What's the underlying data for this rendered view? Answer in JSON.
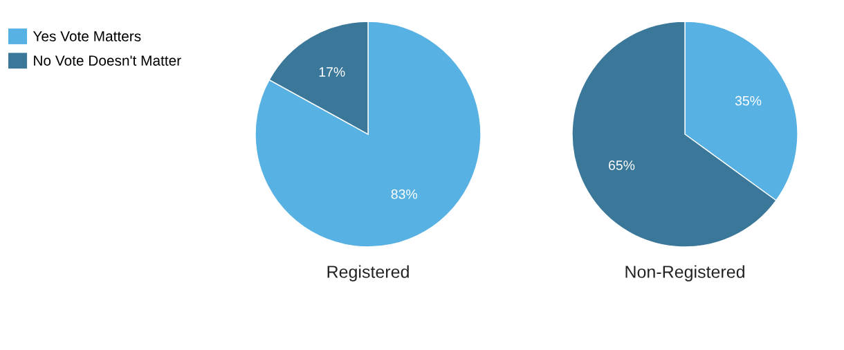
{
  "chart_data": [
    {
      "type": "pie",
      "title": "Registered",
      "categories": [
        "Yes Vote Matters",
        "No Vote Doesn't Matter"
      ],
      "values": [
        83,
        17
      ],
      "colors": [
        "#58b1e3",
        "#3a7799"
      ],
      "value_labels": [
        "83%",
        "17%"
      ],
      "legend": "top left"
    },
    {
      "type": "pie",
      "title": "Non-Registered",
      "categories": [
        null,
        null
      ],
      "values": [
        35,
        65
      ],
      "colors": [
        "#58b1e3",
        "#3a7799"
      ],
      "value_labels": [
        "35%",
        "65%"
      ]
    }
  ]
}
